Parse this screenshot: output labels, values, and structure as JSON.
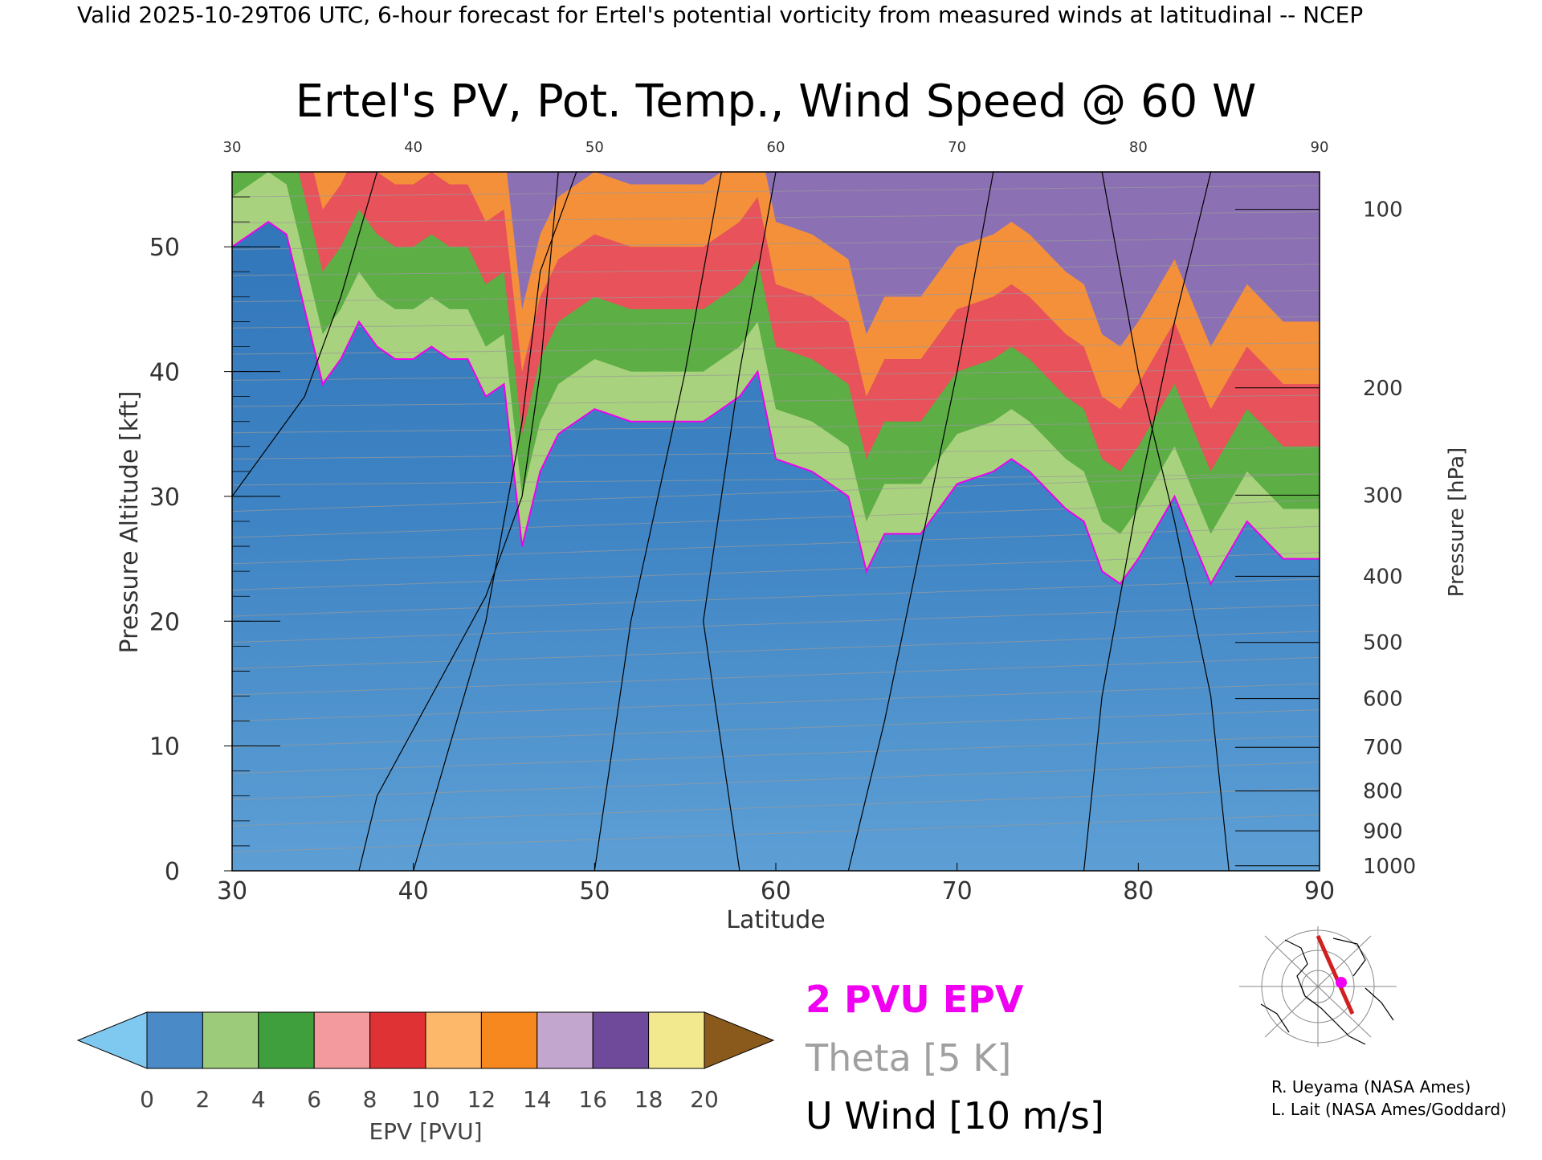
{
  "header": {
    "valid_line": "Valid 2025-10-29T06 UTC, 6-hour forecast for Ertel's potential vorticity from measured winds at latitudinal -- NCEP"
  },
  "chart_data": {
    "type": "heatmap",
    "title": "Ertel's PV, Pot. Temp., Wind Speed @ 60 W",
    "xlabel": "Latitude",
    "ylabel": "Pressure Altitude [kft]",
    "y2label": "Pressure [hPa]",
    "xlim": [
      30,
      90
    ],
    "ylim": [
      0,
      56
    ],
    "x_ticks": [
      "30",
      "40",
      "50",
      "60",
      "70",
      "80",
      "90"
    ],
    "top_x_ticks": [
      "30",
      "40",
      "50",
      "60",
      "70",
      "80",
      "90"
    ],
    "y_ticks": [
      "0",
      "10",
      "20",
      "30",
      "40",
      "50"
    ],
    "y_tick_values": [
      0,
      10,
      20,
      30,
      40,
      50
    ],
    "pressure_ticks": [
      {
        "label": "100",
        "kft": 53.0
      },
      {
        "label": "200",
        "kft": 38.7
      },
      {
        "label": "300",
        "kft": 30.1
      },
      {
        "label": "400",
        "kft": 23.6
      },
      {
        "label": "500",
        "kft": 18.3
      },
      {
        "label": "600",
        "kft": 13.8
      },
      {
        "label": "700",
        "kft": 9.9
      },
      {
        "label": "800",
        "kft": 6.4
      },
      {
        "label": "900",
        "kft": 3.2
      },
      {
        "label": "1000",
        "kft": 0.4
      }
    ],
    "tropopause_2pvu_kft": {
      "lat": [
        30,
        31,
        32,
        33,
        34,
        35,
        36,
        37,
        38,
        39,
        40,
        41,
        42,
        43,
        44,
        45,
        46,
        47,
        48,
        49,
        50,
        52,
        54,
        56,
        58,
        59,
        60,
        62,
        64,
        65,
        66,
        68,
        70,
        72,
        73,
        74,
        76,
        77,
        78,
        79,
        80,
        82,
        84,
        86,
        88,
        90
      ],
      "alt": [
        50,
        51,
        52,
        51,
        45,
        39,
        41,
        44,
        42,
        41,
        41,
        42,
        41,
        41,
        38,
        39,
        26,
        32,
        35,
        36,
        37,
        36,
        36,
        36,
        38,
        40,
        33,
        32,
        30,
        24,
        27,
        27,
        31,
        32,
        33,
        32,
        29,
        28,
        24,
        23,
        25,
        30,
        23,
        28,
        25,
        25
      ]
    },
    "pv_layers_above_tropopause_kft": [
      4,
      9,
      14,
      19
    ],
    "pv_layer_colors": [
      "#5cae45",
      "#e8525a",
      "#f5903a",
      "#8c70b4"
    ],
    "colorbar": {
      "label": "EPV [PVU]",
      "ticks": [
        "0",
        "2",
        "4",
        "6",
        "8",
        "10",
        "12",
        "14",
        "16",
        "18",
        "20"
      ],
      "colors": [
        "#7fc8ef",
        "#4a8bc7",
        "#9ccc79",
        "#3f9f3c",
        "#f29a9d",
        "#df3234",
        "#fdb86a",
        "#f7881f",
        "#c3a6cd",
        "#6f4a9a",
        "#f2e98f",
        "#8a5a1c"
      ]
    },
    "legend": [
      {
        "label": "2 PVU EPV",
        "color": "#f000f0"
      },
      {
        "label": "Theta [5 K]",
        "color": "#a0a0a0"
      },
      {
        "label": "U Wind [10 m/s]",
        "color": "#000000"
      }
    ],
    "grid": false
  },
  "credits": {
    "line1": "R. Ueyama (NASA Ames)",
    "line2": "L. Lait (NASA Ames/Goddard)"
  },
  "inset_map": {
    "icon": "polar-map-icon",
    "track_color": "#d02020",
    "marker_color": "#f000f0"
  }
}
